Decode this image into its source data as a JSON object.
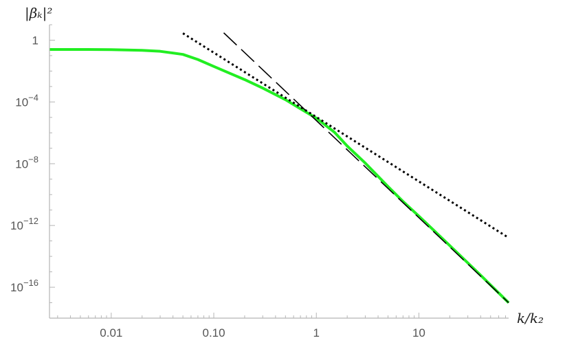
{
  "chart_data": {
    "type": "line",
    "title": "",
    "xlabel": "k/k₂",
    "ylabel": "|βₖ|²",
    "x_scale": "log",
    "y_scale": "log",
    "xlim": [
      0.0025,
      75
    ],
    "ylim": [
      1e-18,
      10
    ],
    "x_ticks": [
      {
        "value": 0.01,
        "label": "0.01"
      },
      {
        "value": 0.1,
        "label": "0.10"
      },
      {
        "value": 1,
        "label": "1"
      },
      {
        "value": 10,
        "label": "10"
      }
    ],
    "y_ticks": [
      {
        "value": 1,
        "label": "1",
        "exp": ""
      },
      {
        "value": 0.0001,
        "label": "10",
        "exp": "−4"
      },
      {
        "value": 1e-08,
        "label": "10",
        "exp": "−8"
      },
      {
        "value": 1e-12,
        "label": "10",
        "exp": "−12"
      },
      {
        "value": 1e-16,
        "label": "10",
        "exp": "−16"
      }
    ],
    "grid": false,
    "series": [
      {
        "style": "solid",
        "color": "#22ee22",
        "x": [
          0.0025,
          0.005,
          0.01,
          0.02,
          0.03,
          0.05,
          0.07,
          0.1,
          0.15,
          0.2,
          0.3,
          0.5,
          0.7,
          1,
          1.5,
          2,
          3,
          5,
          7,
          10,
          20,
          40,
          75
        ],
        "y": [
          0.25,
          0.25,
          0.245,
          0.22,
          0.19,
          0.12,
          0.056,
          0.02,
          0.0063,
          0.0028,
          0.00079,
          0.00014,
          3.6e-05,
          8.9e-06,
          1.1e-06,
          1.4e-07,
          1.1e-08,
          3.3e-10,
          3.6e-11,
          4e-12,
          5e-14,
          6e-16,
          1e-17
        ]
      },
      {
        "style": "dashed",
        "color": "#000000",
        "x": [
          0.125,
          75
        ],
        "y": [
          3,
          1e-17
        ]
      },
      {
        "style": "dotted",
        "color": "#000000",
        "x": [
          0.05,
          75
        ],
        "y": [
          2.8,
          1.6e-13
        ]
      }
    ]
  }
}
